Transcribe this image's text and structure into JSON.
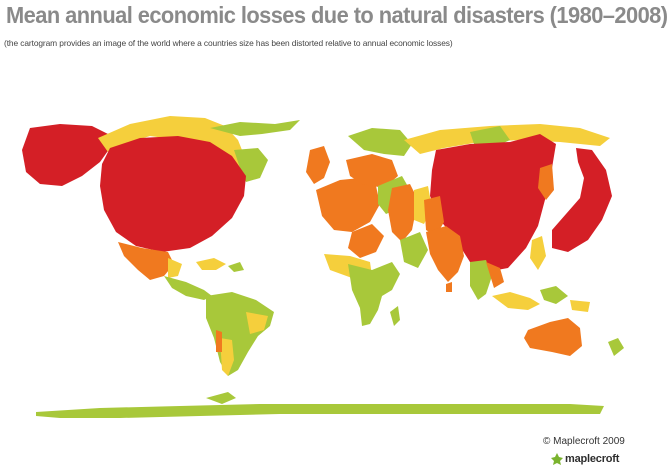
{
  "title": "Mean annual economic losses due to natural disasters (1980–2008)",
  "subtitle": "(the cartogram provides an image of the world where a countries size has been distorted relative to annual economic losses)",
  "copyright": "© Maplecroft 2009",
  "logo_text": "maplecroft",
  "colors": {
    "extreme": "#d41f26",
    "high": "#f0791f",
    "medium": "#f5cf3c",
    "low": "#a8c83a",
    "title": "#8a8a8a",
    "logo_leaf": "#7ab32e"
  },
  "icons": [
    "maplecroft-leaf-icon"
  ]
}
